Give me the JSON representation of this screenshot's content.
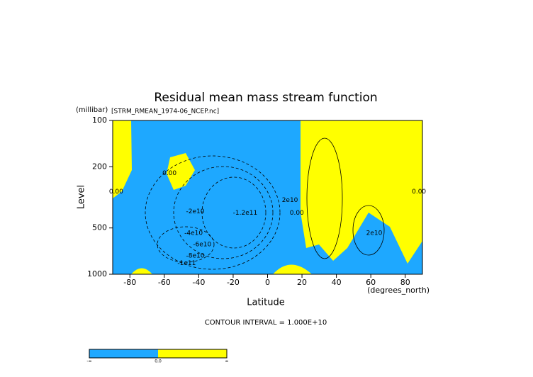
{
  "chart_data": {
    "type": "contour",
    "title": "Residual mean mass stream function",
    "subtitle": "[STRM_RMEAN_1974-06_NCEP.nc]",
    "y_units": "(millibar)",
    "x_units": "(degrees_north)",
    "xlabel": "Latitude",
    "ylabel": "Level",
    "xlim": [
      -90,
      90
    ],
    "xticks": [
      -80,
      -60,
      -40,
      -20,
      0,
      20,
      40,
      60,
      80
    ],
    "ylim": [
      1000,
      100
    ],
    "yticks": [
      100,
      200,
      500,
      1000
    ],
    "log_y": true,
    "colors": [
      "#1ea8ff",
      "#ffff00"
    ],
    "annotations": [
      {
        "text": "-2e10",
        "lat": -42,
        "level": 390
      },
      {
        "text": "-1.2e11",
        "lat": -13,
        "level": 400
      },
      {
        "text": "-4e10",
        "lat": -43,
        "level": 540
      },
      {
        "text": "-6e10",
        "lat": -38,
        "level": 640
      },
      {
        "text": "-8e10",
        "lat": -42,
        "level": 760
      },
      {
        "text": "-1e11",
        "lat": -47,
        "level": 850
      },
      {
        "text": "2e10",
        "lat": 62,
        "level": 540
      },
      {
        "text": "2e10",
        "lat": 13,
        "level": 330
      },
      {
        "text": "0.00",
        "lat": -88,
        "level": 290
      },
      {
        "text": "0.00",
        "lat": -57,
        "level": 220
      },
      {
        "text": "0.00",
        "lat": 88,
        "level": 290
      },
      {
        "text": "0.00",
        "lat": 17,
        "level": 400
      }
    ],
    "contour_interval": "CONTOUR INTERVAL = 1.000E+10",
    "colorbar_labels": [
      "-∞",
      "0.0",
      "∞"
    ]
  }
}
